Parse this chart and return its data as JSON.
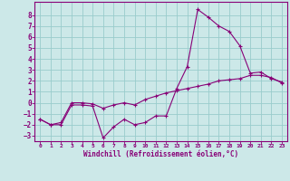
{
  "xlabel": "Windchill (Refroidissement éolien,°C)",
  "ylabel": "",
  "background_color": "#cce8e8",
  "grid_color": "#99cccc",
  "line_color": "#880077",
  "xlim": [
    -0.5,
    23.5
  ],
  "ylim": [
    -3.5,
    9.2
  ],
  "xticks": [
    0,
    1,
    2,
    3,
    4,
    5,
    6,
    7,
    8,
    9,
    10,
    11,
    12,
    13,
    14,
    15,
    16,
    17,
    18,
    19,
    20,
    21,
    22,
    23
  ],
  "yticks": [
    -3,
    -2,
    -1,
    0,
    1,
    2,
    3,
    4,
    5,
    6,
    7,
    8
  ],
  "curve1_x": [
    0,
    1,
    2,
    3,
    4,
    5,
    6,
    7,
    8,
    9,
    10,
    11,
    12,
    13,
    14,
    15,
    16,
    17,
    18,
    19,
    20,
    21,
    22,
    23
  ],
  "curve1_y": [
    -1.5,
    -2.0,
    -2.0,
    -0.2,
    -0.2,
    -0.3,
    -3.2,
    -2.2,
    -1.5,
    -2.0,
    -1.8,
    -1.2,
    -1.2,
    1.3,
    3.3,
    8.5,
    7.8,
    7.0,
    6.5,
    5.2,
    2.7,
    2.8,
    2.2,
    1.9
  ],
  "curve2_x": [
    0,
    1,
    2,
    3,
    4,
    5,
    6,
    7,
    8,
    9,
    10,
    11,
    12,
    13,
    14,
    15,
    16,
    17,
    18,
    19,
    20,
    21,
    22,
    23
  ],
  "curve2_y": [
    -1.5,
    -2.0,
    -1.8,
    0.0,
    0.0,
    -0.1,
    -0.5,
    -0.2,
    0.0,
    -0.2,
    0.3,
    0.6,
    0.9,
    1.1,
    1.3,
    1.5,
    1.7,
    2.0,
    2.1,
    2.2,
    2.5,
    2.5,
    2.3,
    1.8
  ]
}
